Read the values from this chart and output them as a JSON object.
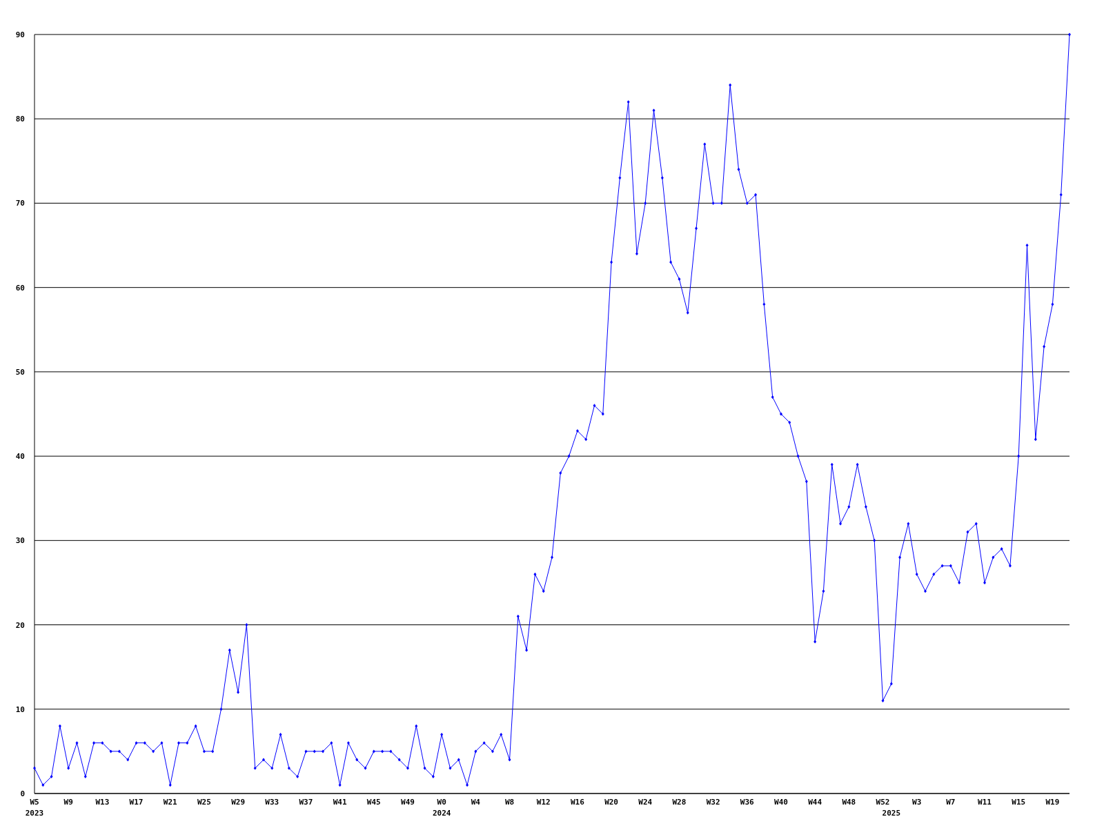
{
  "chart_data": {
    "type": "line",
    "categories": [
      "W5\n2023",
      null,
      null,
      null,
      "W9",
      null,
      null,
      null,
      "W13",
      null,
      null,
      null,
      "W17",
      null,
      null,
      null,
      "W21",
      null,
      null,
      null,
      "W25",
      null,
      null,
      null,
      "W29",
      null,
      null,
      null,
      "W33",
      null,
      null,
      null,
      "W37",
      null,
      null,
      null,
      "W41",
      null,
      null,
      null,
      "W45",
      null,
      null,
      null,
      "W49",
      null,
      null,
      null,
      "W0\n2024",
      null,
      null,
      null,
      "W4",
      null,
      null,
      null,
      "W8",
      null,
      null,
      null,
      "W12",
      null,
      null,
      null,
      "W16",
      null,
      null,
      null,
      "W20",
      null,
      null,
      null,
      "W24",
      null,
      null,
      null,
      "W28",
      null,
      null,
      null,
      "W32",
      null,
      null,
      null,
      "W36",
      null,
      null,
      null,
      "W40",
      null,
      null,
      null,
      "W44",
      null,
      null,
      null,
      "W48",
      null,
      null,
      null,
      "W52",
      "\n2025",
      null,
      null,
      "W3",
      null,
      null,
      null,
      "W7",
      null,
      null,
      null,
      "W11",
      null,
      null,
      null,
      "W15",
      null,
      null,
      null,
      "W19",
      null,
      null
    ],
    "series": [
      {
        "color": "#0000ff",
        "values": [
          3,
          1,
          2,
          8,
          3,
          6,
          2,
          6,
          6,
          5,
          5,
          4,
          6,
          6,
          5,
          6,
          1,
          6,
          6,
          8,
          5,
          5,
          10,
          17,
          12,
          20,
          3,
          4,
          3,
          7,
          3,
          2,
          5,
          5,
          5,
          6,
          1,
          6,
          4,
          3,
          5,
          5,
          5,
          4,
          3,
          8,
          3,
          2,
          7,
          3,
          4,
          1,
          5,
          6,
          5,
          7,
          4,
          21,
          17,
          26,
          24,
          28,
          38,
          40,
          43,
          42,
          46,
          45,
          63,
          73,
          82,
          64,
          70,
          81,
          73,
          63,
          61,
          57,
          67,
          77,
          70,
          70,
          84,
          74,
          70,
          71,
          58,
          47,
          45,
          44,
          40,
          37,
          18,
          24,
          39,
          32,
          34,
          39,
          34,
          30,
          11,
          13,
          28,
          32,
          26,
          24,
          26,
          27,
          27,
          25,
          31,
          32,
          25,
          28,
          29,
          27,
          40,
          65,
          42,
          53,
          58,
          71,
          90
        ]
      }
    ],
    "ylim": [
      0,
      90
    ],
    "yticks": [
      0,
      10,
      20,
      30,
      40,
      50,
      60,
      70,
      80,
      90
    ],
    "grid": "y",
    "marker": "diamond",
    "line_style": "solid"
  }
}
